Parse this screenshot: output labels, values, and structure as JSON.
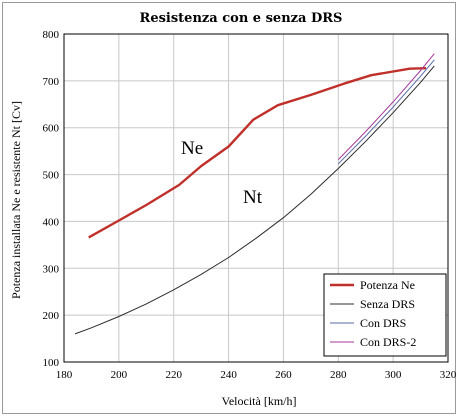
{
  "chart_data": {
    "type": "line",
    "title": "Resistenza con e senza DRS",
    "xlabel": "Velocità  [km/h]",
    "ylabel": "Potenza installata Ne e resistente Nt  [Cv]",
    "xlim": [
      180,
      320
    ],
    "ylim": [
      100,
      800
    ],
    "xticks": [
      "180",
      "200",
      "220",
      "240",
      "260",
      "280",
      "300",
      "320"
    ],
    "yticks": [
      "100",
      "200",
      "300",
      "400",
      "500",
      "600",
      "700",
      "800"
    ],
    "grid": true,
    "legend_position": "bottom-right",
    "annotations": [
      "Ne",
      "Nt"
    ],
    "series": [
      {
        "name": "Potenza Ne",
        "color": "#c0302a",
        "x": [
          189,
          200,
          210,
          222,
          230,
          240,
          249,
          258,
          270,
          282,
          292,
          300,
          306,
          312
        ],
        "y": [
          366,
          402,
          435,
          478,
          518,
          560,
          617,
          648,
          670,
          694,
          712,
          720,
          726,
          727
        ]
      },
      {
        "name": "Senza DRS",
        "color": "#2c2c2c",
        "x": [
          184,
          190,
          200,
          210,
          220,
          230,
          240,
          250,
          260,
          270,
          280,
          290,
          300,
          310,
          315
        ],
        "y": [
          160,
          173,
          197,
          224,
          254,
          287,
          323,
          364,
          408,
          458,
          513,
          571,
          632,
          697,
          732
        ]
      },
      {
        "name": "Con DRS",
        "color": "#5a6aa8",
        "x": [
          280,
          290,
          300,
          310,
          315
        ],
        "y": [
          523,
          582,
          644,
          710,
          745
        ]
      },
      {
        "name": "Con DRS-2",
        "color": "#a83a9a",
        "x": [
          280,
          290,
          300,
          310,
          315
        ],
        "y": [
          532,
          592,
          655,
          722,
          758
        ]
      }
    ]
  }
}
